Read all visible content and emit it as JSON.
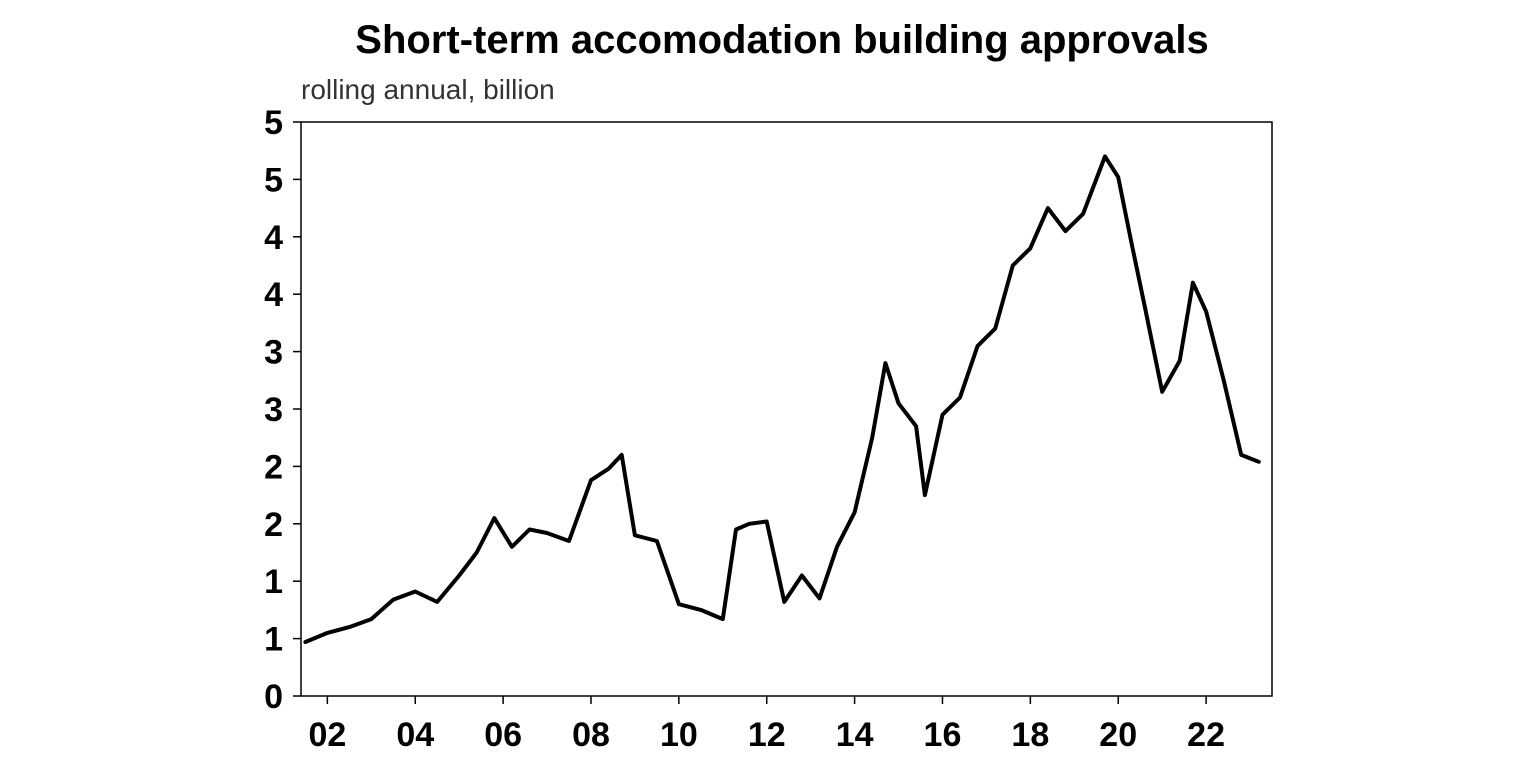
{
  "chart_data": {
    "type": "line",
    "title": "Short-term accomodation building approvals",
    "subtitle": "rolling annual, billion",
    "xlabel": "",
    "ylabel": "",
    "y_ticks": [
      {
        "value": 0.0,
        "label": "0"
      },
      {
        "value": 0.5,
        "label": "1"
      },
      {
        "value": 1.0,
        "label": "1"
      },
      {
        "value": 1.5,
        "label": "2"
      },
      {
        "value": 2.0,
        "label": "2"
      },
      {
        "value": 2.5,
        "label": "3"
      },
      {
        "value": 3.0,
        "label": "3"
      },
      {
        "value": 3.5,
        "label": "4"
      },
      {
        "value": 4.0,
        "label": "4"
      },
      {
        "value": 4.5,
        "label": "5"
      },
      {
        "value": 5.0,
        "label": "5"
      }
    ],
    "x_ticks": [
      {
        "value": 2002,
        "label": "02"
      },
      {
        "value": 2004,
        "label": "04"
      },
      {
        "value": 2006,
        "label": "06"
      },
      {
        "value": 2008,
        "label": "08"
      },
      {
        "value": 2010,
        "label": "10"
      },
      {
        "value": 2012,
        "label": "12"
      },
      {
        "value": 2014,
        "label": "14"
      },
      {
        "value": 2016,
        "label": "16"
      },
      {
        "value": 2018,
        "label": "18"
      },
      {
        "value": 2020,
        "label": "20"
      },
      {
        "value": 2022,
        "label": "22"
      }
    ],
    "xlim": [
      2001.4,
      2023.5
    ],
    "ylim": [
      0,
      5
    ],
    "grid": false,
    "series_color": "#000000",
    "series": [
      {
        "x": [
          2001.5,
          2002.0,
          2002.5,
          2003.0,
          2003.5,
          2004.0,
          2004.5,
          2005.0,
          2005.4,
          2005.8,
          2006.2,
          2006.6,
          2007.0,
          2007.5,
          2008.0,
          2008.4,
          2008.7,
          2009.0,
          2009.5,
          2010.0,
          2010.5,
          2011.0,
          2011.3,
          2011.6,
          2012.0,
          2012.4,
          2012.8,
          2013.2,
          2013.6,
          2014.0,
          2014.4,
          2014.7,
          2015.0,
          2015.4,
          2015.6,
          2016.0,
          2016.4,
          2016.8,
          2017.2,
          2017.6,
          2018.0,
          2018.4,
          2018.8,
          2019.2,
          2019.7,
          2020.0,
          2020.3,
          2020.6,
          2021.0,
          2021.4,
          2021.7,
          2022.0,
          2022.4,
          2022.8,
          2023.2
        ],
        "y": [
          0.47,
          0.55,
          0.6,
          0.67,
          0.84,
          0.91,
          0.82,
          1.05,
          1.25,
          1.55,
          1.3,
          1.45,
          1.42,
          1.35,
          1.88,
          1.98,
          2.1,
          1.4,
          1.35,
          0.8,
          0.75,
          0.67,
          1.45,
          1.5,
          1.52,
          0.82,
          1.05,
          0.85,
          1.3,
          1.6,
          2.25,
          2.9,
          2.55,
          2.35,
          1.75,
          2.45,
          2.6,
          3.05,
          3.2,
          3.75,
          3.9,
          4.25,
          4.05,
          4.2,
          4.7,
          4.52,
          3.95,
          3.4,
          2.65,
          2.92,
          3.6,
          3.35,
          2.75,
          2.1,
          2.04
        ]
      }
    ]
  }
}
